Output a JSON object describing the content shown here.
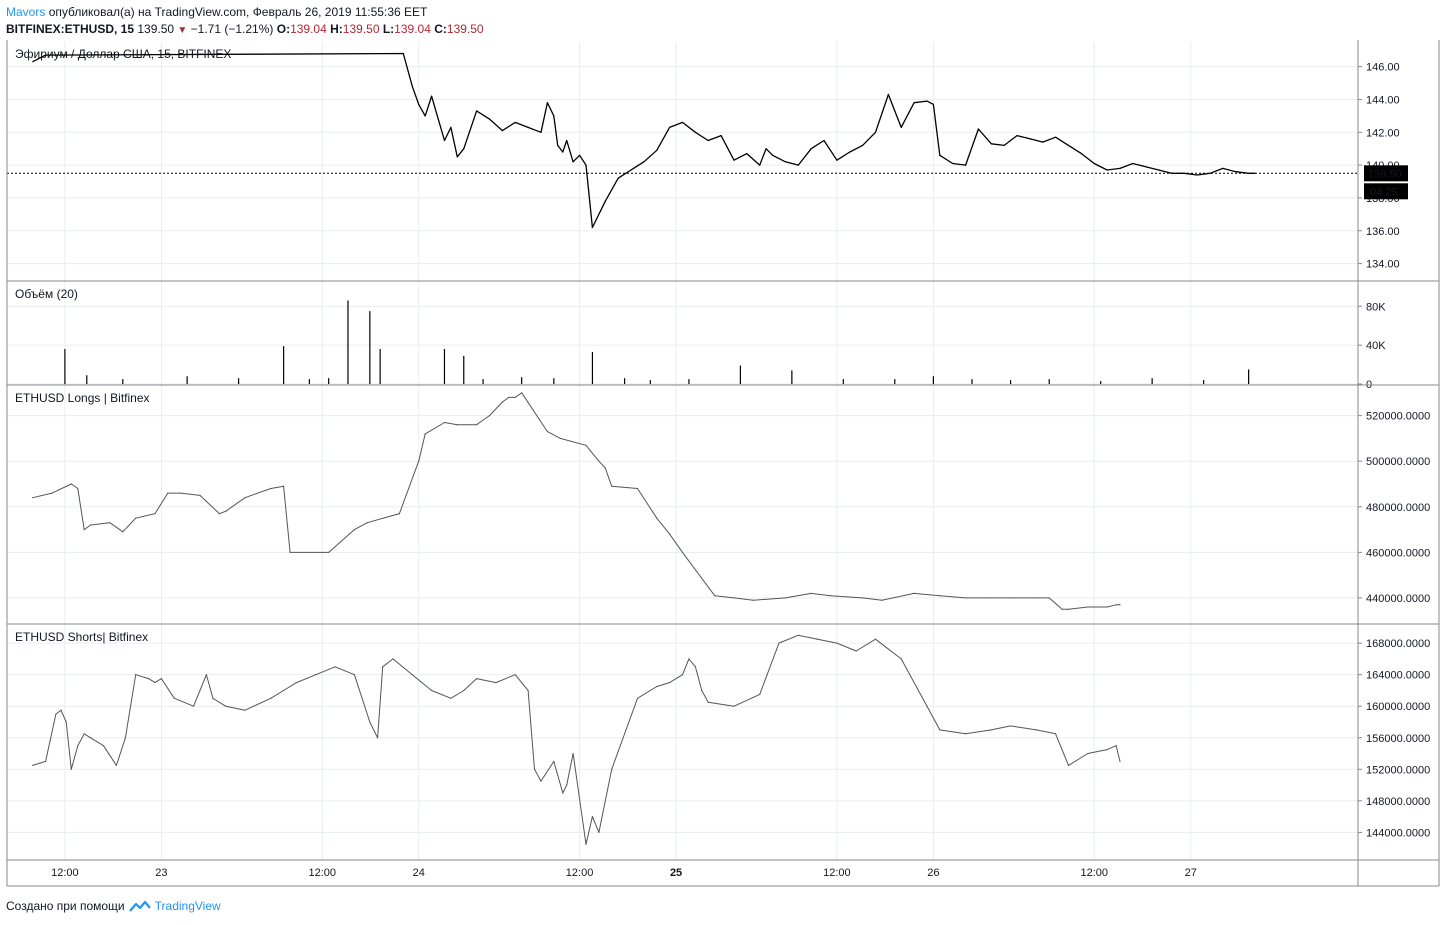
{
  "header": {
    "author": "Mavors",
    "published_text": "опубликовал(а) на TradingView.com, Февраль 26, 2019 11:55:36 EET",
    "symbol": "BITFINEX:ETHUSD, 15",
    "last": "139.50",
    "change": "−1.71 (−1.21%)",
    "o_label": "O:",
    "o_value": "139.04",
    "h_label": "H:",
    "h_value": "139.50",
    "l_label": "L:",
    "l_value": "139.04",
    "c_label": "C:",
    "c_value": "139.50"
  },
  "footer": {
    "created_text": "Создано при помощи",
    "brand": "TradingView",
    "logo_icon": "tradingview-logo-icon"
  },
  "colors": {
    "price_line": "#000000",
    "grid": "#e8edf2",
    "series_line": "#555555",
    "border": "#888888",
    "label_bg": "#000000",
    "brand": "#2196f3",
    "down": "#b22833"
  },
  "chart_data": [
    {
      "type": "line",
      "title": "Эфириум / Доллар США, 15, BITFINEX",
      "ylim": [
        133,
        147.5
      ],
      "yticks": [
        134,
        136,
        138,
        140,
        142,
        144,
        146
      ],
      "ytick_labels": [
        "134.00",
        "136.00",
        "138.00",
        "140.00",
        "142.00",
        "144.00",
        "146.00"
      ],
      "last_value": 139.5,
      "last_value_label": "139.50",
      "countdown_label": "04:25",
      "x": [
        0.0,
        0.1,
        2.88,
        2.95,
        3.0,
        3.05,
        3.1,
        3.2,
        3.25,
        3.3,
        3.35,
        3.45,
        3.55,
        3.65,
        3.75,
        3.85,
        3.95,
        4.0,
        4.05,
        4.08,
        4.12,
        4.15,
        4.2,
        4.25,
        4.3,
        4.35,
        4.45,
        4.55,
        4.65,
        4.75,
        4.85,
        4.95,
        5.05,
        5.15,
        5.25,
        5.35,
        5.45,
        5.55,
        5.65,
        5.7,
        5.75,
        5.85,
        5.95,
        6.05,
        6.15,
        6.25,
        6.35,
        6.45,
        6.55,
        6.65,
        6.75,
        6.85,
        6.95,
        7.0,
        7.05,
        7.15,
        7.25,
        7.35,
        7.45,
        7.55,
        7.65,
        7.75,
        7.85,
        7.95,
        8.05,
        8.15,
        8.25,
        8.35,
        8.45,
        8.55,
        8.65,
        8.75,
        8.85,
        8.95,
        9.05,
        9.15,
        9.25,
        9.35,
        9.45,
        9.5
      ],
      "values": [
        146.3,
        146.7,
        146.8,
        144.8,
        143.7,
        143.0,
        144.2,
        141.5,
        142.3,
        140.5,
        141.0,
        143.3,
        142.8,
        142.1,
        142.6,
        142.3,
        142.0,
        143.8,
        143.0,
        141.2,
        140.8,
        141.5,
        140.2,
        140.6,
        140.0,
        136.2,
        137.8,
        139.2,
        139.7,
        140.2,
        140.9,
        142.3,
        142.6,
        142.0,
        141.5,
        141.8,
        140.3,
        140.7,
        140.0,
        141.0,
        140.6,
        140.2,
        140.0,
        141.0,
        141.5,
        140.3,
        140.8,
        141.2,
        142.0,
        144.3,
        142.3,
        143.8,
        143.9,
        143.7,
        140.6,
        140.1,
        140.0,
        142.2,
        141.3,
        141.2,
        141.8,
        141.6,
        141.4,
        141.7,
        141.2,
        140.7,
        140.1,
        139.7,
        139.8,
        140.1,
        139.9,
        139.7,
        139.5,
        139.5,
        139.4,
        139.5,
        139.8,
        139.6,
        139.5,
        139.5
      ]
    },
    {
      "type": "bar",
      "title": "Объём (20)",
      "ylim": [
        0,
        105000
      ],
      "yticks": [
        0,
        40000,
        80000
      ],
      "ytick_labels": [
        "0",
        "40K",
        "80K"
      ],
      "x": [
        0.25,
        0.42,
        0.7,
        1.2,
        1.6,
        1.95,
        2.15,
        2.3,
        2.45,
        2.62,
        2.7,
        3.2,
        3.35,
        3.5,
        3.8,
        4.05,
        4.35,
        4.6,
        4.8,
        5.1,
        5.5,
        5.9,
        6.3,
        6.7,
        7.0,
        7.3,
        7.6,
        7.9,
        8.3,
        8.7,
        9.1,
        9.45
      ],
      "values": [
        36000,
        9000,
        5000,
        8000,
        6000,
        39000,
        5000,
        6000,
        86000,
        75000,
        36000,
        36000,
        29000,
        5000,
        7000,
        6000,
        33000,
        6000,
        4000,
        5000,
        19000,
        14000,
        5000,
        5000,
        8000,
        5000,
        4000,
        5000,
        3000,
        6000,
        4000,
        15000
      ]
    },
    {
      "type": "line",
      "title": "ETHUSD Longs | Bitfinex",
      "ylim": [
        429000,
        533000
      ],
      "yticks": [
        440000,
        460000,
        480000,
        500000,
        520000
      ],
      "ytick_labels": [
        "440000.0000",
        "460000.0000",
        "480000.0000",
        "500000.0000",
        "520000.0000"
      ],
      "x": [
        0.0,
        0.15,
        0.3,
        0.35,
        0.4,
        0.45,
        0.6,
        0.7,
        0.8,
        0.95,
        1.05,
        1.15,
        1.3,
        1.45,
        1.5,
        1.65,
        1.85,
        1.95,
        2.0,
        2.3,
        2.5,
        2.6,
        2.85,
        3.0,
        3.05,
        3.2,
        3.3,
        3.45,
        3.55,
        3.65,
        3.7,
        3.75,
        3.8,
        4.0,
        4.1,
        4.3,
        4.4,
        4.45,
        4.5,
        4.7,
        4.85,
        4.95,
        5.05,
        5.3,
        5.45,
        5.6,
        5.85,
        6.05,
        6.2,
        6.45,
        6.6,
        6.85,
        7.05,
        7.25,
        7.4,
        7.6,
        7.8,
        7.9,
        8.0,
        8.05,
        8.2,
        8.35,
        8.42,
        8.45
      ],
      "values": [
        484000,
        486000,
        490000,
        488000,
        470000,
        472000,
        473000,
        469000,
        475000,
        477000,
        486000,
        486000,
        485000,
        477000,
        478000,
        484000,
        488000,
        489000,
        460000,
        460000,
        470000,
        473000,
        477000,
        500000,
        512000,
        517000,
        516000,
        516000,
        520000,
        526000,
        528000,
        528000,
        530000,
        513000,
        510000,
        507000,
        500000,
        497000,
        489000,
        488000,
        475000,
        468000,
        460000,
        441000,
        440000,
        439000,
        440000,
        442000,
        441000,
        440000,
        439000,
        442000,
        441000,
        440000,
        440000,
        440000,
        440000,
        440000,
        435000,
        435000,
        436000,
        436000,
        437000,
        437000
      ]
    },
    {
      "type": "line",
      "title": "ETHUSD Shorts| Bitfinex",
      "ylim": [
        140500,
        170300
      ],
      "yticks": [
        144000,
        148000,
        152000,
        156000,
        160000,
        164000,
        168000
      ],
      "ytick_labels": [
        "144000.0000",
        "148000.0000",
        "152000.0000",
        "156000.0000",
        "160000.0000",
        "164000.0000",
        "168000.0000"
      ],
      "x": [
        0.0,
        0.1,
        0.18,
        0.22,
        0.26,
        0.3,
        0.35,
        0.4,
        0.45,
        0.55,
        0.65,
        0.72,
        0.8,
        0.9,
        0.95,
        1.0,
        1.1,
        1.25,
        1.35,
        1.4,
        1.5,
        1.65,
        1.85,
        1.95,
        2.05,
        2.2,
        2.35,
        2.5,
        2.62,
        2.68,
        2.72,
        2.8,
        2.95,
        3.1,
        3.25,
        3.35,
        3.45,
        3.6,
        3.75,
        3.85,
        3.9,
        3.95,
        4.05,
        4.12,
        4.15,
        4.2,
        4.3,
        4.35,
        4.4,
        4.5,
        4.7,
        4.85,
        4.95,
        5.05,
        5.1,
        5.15,
        5.2,
        5.25,
        5.45,
        5.65,
        5.8,
        5.95,
        6.1,
        6.25,
        6.4,
        6.55,
        6.75,
        6.95,
        7.05,
        7.25,
        7.45,
        7.6,
        7.8,
        7.95,
        8.05,
        8.2,
        8.35,
        8.42,
        8.45
      ],
      "values": [
        152500,
        153000,
        159000,
        159500,
        158000,
        152000,
        155000,
        156500,
        156000,
        155000,
        152500,
        156000,
        164000,
        163500,
        163000,
        163500,
        161000,
        160000,
        164000,
        161000,
        160000,
        159500,
        161000,
        162000,
        163000,
        164000,
        165000,
        164000,
        158000,
        156000,
        165000,
        166000,
        164000,
        162000,
        161000,
        162000,
        163500,
        163000,
        164000,
        162000,
        152000,
        150500,
        153000,
        149000,
        150000,
        154000,
        142500,
        146000,
        144000,
        152000,
        161000,
        162500,
        163000,
        164000,
        166000,
        165000,
        162000,
        160500,
        160000,
        161500,
        168000,
        169000,
        168500,
        168000,
        167000,
        168500,
        166000,
        160000,
        157000,
        156500,
        157000,
        157500,
        157000,
        156500,
        152500,
        154000,
        154500,
        155000,
        153000
      ]
    }
  ],
  "x_axis": {
    "range": [
      -0.2,
      10.3
    ],
    "tick_positions": [
      0.25,
      1.0,
      2.25,
      3.0,
      4.25,
      5.0,
      6.25,
      7.0,
      8.25,
      9.0
    ],
    "tick_labels": [
      "12:00",
      "23",
      "12:00",
      "24",
      "12:00",
      "25",
      "12:00",
      "26",
      "12:00",
      "27"
    ]
  }
}
